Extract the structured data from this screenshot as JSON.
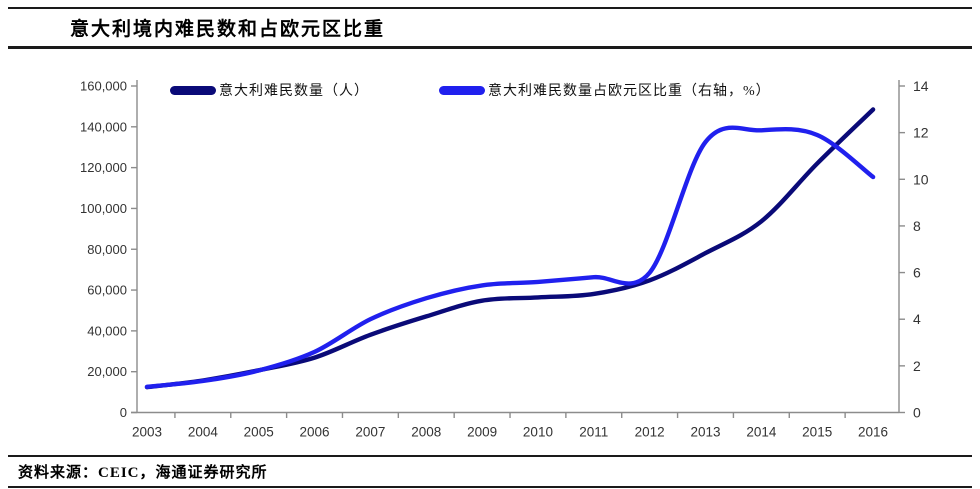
{
  "page": {
    "title": "意大利境内难民数和占欧元区比重",
    "source_label": "资料来源：CEIC，海通证券研究所"
  },
  "colors": {
    "refugees_line": "#0a0a78",
    "share_line": "#2020ee",
    "axis_line": "#8c8c8c",
    "tick_text": "#333333",
    "rule": "#1a1a1a"
  },
  "chart_data": {
    "type": "line",
    "title": "意大利境内难民数和占欧元区比重",
    "x": [
      2003,
      2004,
      2005,
      2006,
      2007,
      2008,
      2009,
      2010,
      2011,
      2012,
      2013,
      2014,
      2015,
      2016
    ],
    "series": [
      {
        "name": "意大利难民数量（人）",
        "axis": "left",
        "color": "#0a0a78",
        "values": [
          12400,
          15700,
          20700,
          26900,
          38100,
          47100,
          54800,
          56400,
          58100,
          64800,
          78100,
          93700,
          122000,
          148500
        ]
      },
      {
        "name": "意大利难民数量占欧元区比重（右轴，%）",
        "axis": "right",
        "color": "#2020ee",
        "values": [
          1.1,
          1.35,
          1.8,
          2.6,
          4.0,
          4.9,
          5.45,
          5.6,
          5.8,
          6.0,
          11.6,
          12.1,
          11.9,
          10.1
        ]
      }
    ],
    "left_axis": {
      "min": 0,
      "max": 160000,
      "step": 20000
    },
    "right_axis": {
      "min": 0,
      "max": 14,
      "step": 2
    },
    "grid": false,
    "legend_position": "top",
    "source": "资料来源：CEIC，海通证券研究所"
  }
}
